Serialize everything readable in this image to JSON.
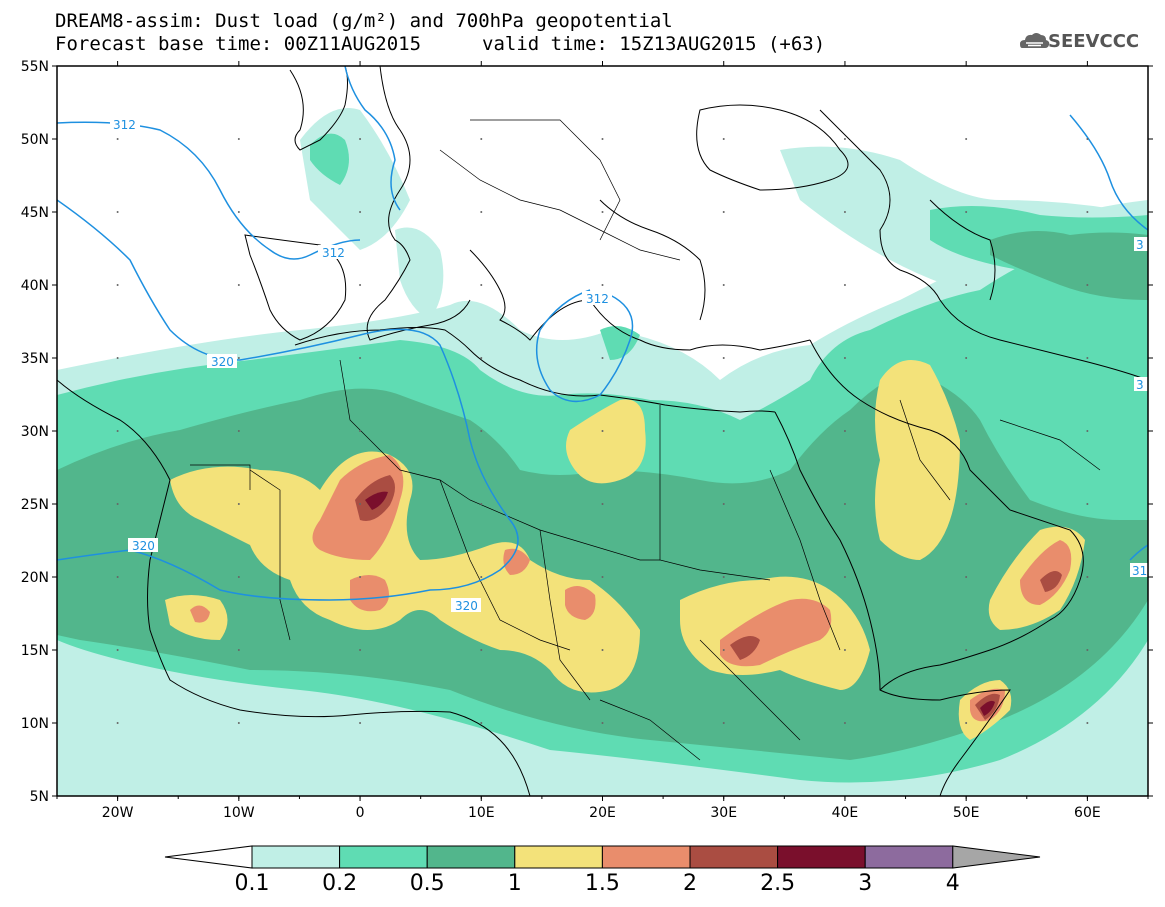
{
  "title": {
    "line1": "DREAM8-assim: Dust load (g/m²) and 700hPa geopotential",
    "line2a": "Forecast base time: 00Z11AUG2015",
    "line2b": "valid time: 15Z13AUG2015 (+63)"
  },
  "logo": {
    "text": "SEEVCCC",
    "icon": "cloud-icon"
  },
  "map": {
    "lat_range": [
      5,
      55
    ],
    "lon_range": [
      -25,
      65
    ],
    "lat_labels": [
      "55N",
      "50N",
      "45N",
      "40N",
      "35N",
      "30N",
      "25N",
      "20N",
      "15N",
      "10N",
      "5N"
    ],
    "lon_labels": [
      "20W",
      "10W",
      "0",
      "10E",
      "20E",
      "30E",
      "40E",
      "50E",
      "60E"
    ],
    "contour_labels": [
      "312",
      "312",
      "312",
      "320",
      "320",
      "320",
      "3",
      "3",
      "31"
    ]
  },
  "colorbar": {
    "unit": "g/m²",
    "labels": [
      "0.1",
      "0.2",
      "0.5",
      "1",
      "1.5",
      "2",
      "2.5",
      "3",
      "4"
    ],
    "colors": [
      "#c0efe6",
      "#5fdcb3",
      "#52b68c",
      "#f3e27a",
      "#e98d6c",
      "#aa4d42",
      "#7a0f2c",
      "#8d6b9e"
    ],
    "low_end_color": "#ffffff",
    "high_end_color": "#a6a6a6"
  },
  "colors": {
    "contour": "#1e90e0",
    "dust_01": "#c0efe6",
    "dust_02": "#5fdcb3",
    "dust_05": "#52b68c",
    "dust_1": "#f3e27a",
    "dust_15": "#e98d6c",
    "dust_2": "#aa4d42",
    "dust_25": "#7a0f2c",
    "dust_3": "#8d6b9e"
  }
}
